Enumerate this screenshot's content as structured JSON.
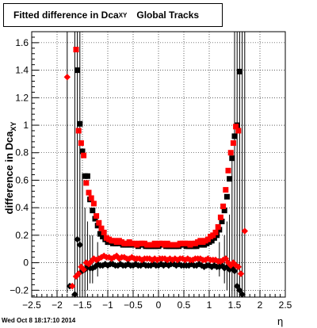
{
  "title": {
    "main": "Fitted difference in Dca",
    "sub": "XY",
    "rest": "Global Tracks"
  },
  "timestamp": "Wed Oct  8 18:17:10 2014",
  "chart_data": {
    "type": "scatter",
    "xlabel": "η",
    "ylabel": "difference in Dca",
    "ylabel_sub": "XY",
    "xlim": [
      -2.5,
      2.5
    ],
    "ylim": [
      -0.25,
      1.68
    ],
    "xticks": [
      -2.5,
      -2,
      -1.5,
      -1,
      -0.5,
      0,
      0.5,
      1,
      1.5,
      2,
      2.5
    ],
    "xtick_labels": [
      "−2.5",
      "−2",
      "−1.5",
      "−1",
      "−0.5",
      "0",
      "0.5",
      "1",
      "1.5",
      "2",
      "2.5"
    ],
    "yticks": [
      -0.2,
      0,
      0.2,
      0.4,
      0.6,
      0.8,
      1,
      1.2,
      1.4,
      1.6
    ],
    "ytick_labels": [
      "−0.2",
      "0",
      "0.2",
      "0.4",
      "0.6",
      "0.8",
      "1",
      "1.2",
      "1.4",
      "1.6"
    ],
    "grid": true,
    "series": [
      {
        "marker": "square",
        "color": "#000000",
        "x": [
          -1.6,
          -1.55,
          -1.5,
          -1.45,
          -1.4,
          -1.35,
          -1.3,
          -1.25,
          -1.2,
          -1.15,
          -1.1,
          -1.05,
          -1.0,
          -0.95,
          -0.9,
          -0.85,
          -0.8,
          -0.75,
          -0.7,
          -0.65,
          -0.6,
          -0.55,
          -0.5,
          -0.45,
          -0.4,
          -0.35,
          -0.3,
          -0.25,
          -0.2,
          -0.15,
          -0.1,
          -0.05,
          0.0,
          0.05,
          0.1,
          0.15,
          0.2,
          0.25,
          0.3,
          0.35,
          0.4,
          0.45,
          0.5,
          0.55,
          0.6,
          0.65,
          0.7,
          0.75,
          0.8,
          0.85,
          0.9,
          0.95,
          1.0,
          1.05,
          1.1,
          1.15,
          1.2,
          1.25,
          1.3,
          1.35,
          1.4,
          1.45,
          1.5,
          1.55,
          1.6
        ],
        "y": [
          1.4,
          1.01,
          0.81,
          0.63,
          0.63,
          0.46,
          0.38,
          0.32,
          0.27,
          0.21,
          0.19,
          0.17,
          0.15,
          0.15,
          0.14,
          0.14,
          0.14,
          0.15,
          0.13,
          0.13,
          0.13,
          0.13,
          0.13,
          0.13,
          0.12,
          0.13,
          0.13,
          0.12,
          0.12,
          0.12,
          0.12,
          0.12,
          0.12,
          0.13,
          0.13,
          0.12,
          0.12,
          0.12,
          0.12,
          0.12,
          0.12,
          0.13,
          0.13,
          0.12,
          0.12,
          0.12,
          0.12,
          0.12,
          0.14,
          0.13,
          0.13,
          0.14,
          0.15,
          0.16,
          0.18,
          0.2,
          0.24,
          0.3,
          0.38,
          0.48,
          0.61,
          0.76,
          0.92,
          1.0,
          1.39
        ]
      },
      {
        "marker": "square",
        "color": "#ff0000",
        "x": [
          -1.625,
          -1.575,
          -1.525,
          -1.475,
          -1.425,
          -1.375,
          -1.325,
          -1.275,
          -1.225,
          -1.175,
          -1.125,
          -1.075,
          -1.025,
          -0.975,
          -0.925,
          -0.875,
          -0.825,
          -0.775,
          -0.725,
          -0.675,
          -0.625,
          -0.575,
          -0.525,
          -0.475,
          -0.425,
          -0.375,
          -0.325,
          -0.275,
          -0.225,
          -0.175,
          -0.125,
          -0.075,
          -0.025,
          0.025,
          0.075,
          0.125,
          0.175,
          0.225,
          0.275,
          0.325,
          0.375,
          0.425,
          0.475,
          0.525,
          0.575,
          0.625,
          0.675,
          0.725,
          0.775,
          0.825,
          0.875,
          0.925,
          0.975,
          1.025,
          1.075,
          1.125,
          1.175,
          1.225,
          1.275,
          1.325,
          1.375,
          1.425,
          1.475,
          1.525,
          1.575
        ],
        "y": [
          1.55,
          0.96,
          0.87,
          0.78,
          0.58,
          0.51,
          0.47,
          0.43,
          0.34,
          0.29,
          0.25,
          0.22,
          0.18,
          0.17,
          0.16,
          0.16,
          0.15,
          0.16,
          0.15,
          0.14,
          0.14,
          0.15,
          0.14,
          0.14,
          0.13,
          0.14,
          0.14,
          0.14,
          0.13,
          0.13,
          0.13,
          0.14,
          0.13,
          0.14,
          0.14,
          0.13,
          0.14,
          0.13,
          0.13,
          0.13,
          0.13,
          0.14,
          0.14,
          0.14,
          0.14,
          0.13,
          0.14,
          0.14,
          0.15,
          0.16,
          0.15,
          0.16,
          0.17,
          0.19,
          0.2,
          0.22,
          0.26,
          0.33,
          0.41,
          0.53,
          0.67,
          0.8,
          0.87,
          0.99,
          0.96
        ]
      },
      {
        "marker": "diamond",
        "color": "#000000",
        "x": [
          -1.75,
          -1.65,
          -1.6,
          -1.55,
          -1.5,
          -1.45,
          -1.4,
          -1.35,
          -1.3,
          -1.25,
          -1.2,
          -1.15,
          -1.1,
          -1.05,
          -1.0,
          -0.95,
          -0.9,
          -0.85,
          -0.8,
          -0.75,
          -0.7,
          -0.65,
          -0.6,
          -0.55,
          -0.5,
          -0.45,
          -0.4,
          -0.35,
          -0.3,
          -0.25,
          -0.2,
          -0.15,
          -0.1,
          -0.05,
          0.0,
          0.05,
          0.1,
          0.15,
          0.2,
          0.25,
          0.3,
          0.35,
          0.4,
          0.45,
          0.5,
          0.55,
          0.6,
          0.65,
          0.7,
          0.75,
          0.8,
          0.85,
          0.9,
          0.95,
          1.0,
          1.05,
          1.1,
          1.15,
          1.2,
          1.25,
          1.3,
          1.35,
          1.4,
          1.45,
          1.5,
          1.55,
          1.6,
          1.65
        ],
        "y": [
          -0.17,
          -0.23,
          0.17,
          0.13,
          -0.06,
          -0.05,
          -0.02,
          -0.04,
          -0.04,
          -0.03,
          -0.01,
          -0.02,
          -0.02,
          -0.01,
          -0.02,
          -0.01,
          -0.01,
          -0.02,
          -0.02,
          -0.01,
          -0.02,
          -0.02,
          -0.01,
          -0.02,
          -0.02,
          -0.01,
          -0.02,
          -0.02,
          -0.01,
          -0.02,
          -0.02,
          -0.02,
          -0.01,
          -0.02,
          -0.02,
          -0.01,
          -0.02,
          -0.01,
          -0.02,
          -0.01,
          -0.01,
          -0.02,
          -0.01,
          -0.02,
          -0.02,
          -0.02,
          -0.02,
          -0.01,
          -0.02,
          -0.02,
          -0.01,
          -0.02,
          -0.03,
          -0.02,
          -0.02,
          -0.03,
          -0.02,
          -0.03,
          -0.03,
          -0.02,
          -0.04,
          -0.03,
          -0.05,
          -0.04,
          -0.06,
          -0.17,
          -0.2,
          -0.23
        ]
      },
      {
        "marker": "diamond",
        "color": "#ff0000",
        "x": [
          -1.8,
          -1.7,
          -1.625,
          -1.575,
          -1.525,
          -1.475,
          -1.425,
          -1.375,
          -1.325,
          -1.275,
          -1.225,
          -1.175,
          -1.125,
          -1.075,
          -1.025,
          -0.975,
          -0.925,
          -0.875,
          -0.825,
          -0.775,
          -0.725,
          -0.675,
          -0.625,
          -0.575,
          -0.525,
          -0.475,
          -0.425,
          -0.375,
          -0.325,
          -0.275,
          -0.225,
          -0.175,
          -0.125,
          -0.075,
          -0.025,
          0.025,
          0.075,
          0.125,
          0.175,
          0.225,
          0.275,
          0.325,
          0.375,
          0.425,
          0.475,
          0.525,
          0.575,
          0.625,
          0.675,
          0.725,
          0.775,
          0.825,
          0.875,
          0.925,
          0.975,
          1.025,
          1.075,
          1.125,
          1.175,
          1.225,
          1.275,
          1.325,
          1.375,
          1.425,
          1.475,
          1.525,
          1.575,
          1.625,
          1.7
        ],
        "y": [
          1.35,
          -0.17,
          -0.1,
          -0.08,
          -0.03,
          -0.05,
          0.0,
          -0.01,
          0.01,
          0.03,
          0.02,
          0.03,
          0.04,
          0.05,
          0.04,
          0.04,
          0.03,
          0.04,
          0.05,
          0.03,
          0.04,
          0.04,
          0.03,
          0.03,
          0.04,
          0.03,
          0.03,
          0.03,
          0.02,
          0.03,
          0.03,
          0.03,
          0.02,
          0.03,
          0.02,
          0.03,
          0.03,
          0.03,
          0.02,
          0.03,
          0.02,
          0.03,
          0.02,
          0.03,
          0.03,
          0.02,
          0.03,
          0.02,
          0.02,
          0.03,
          0.03,
          0.03,
          0.02,
          0.02,
          0.03,
          0.02,
          0.02,
          0.02,
          0.01,
          0.01,
          0.02,
          0.03,
          0.0,
          -0.02,
          0.0,
          -0.02,
          -0.03,
          -0.08,
          0.23
        ]
      }
    ],
    "error_bars": [
      {
        "x": -1.8,
        "low": -0.22,
        "high": 1.68
      },
      {
        "x": -1.65,
        "low": -0.25,
        "high": 1.68
      },
      {
        "x": -1.6,
        "low": -0.25,
        "high": 1.68
      },
      {
        "x": -1.55,
        "low": -0.25,
        "high": 1.68
      },
      {
        "x": -1.5,
        "low": -0.25,
        "high": 0.65
      },
      {
        "x": -1.45,
        "low": -0.25,
        "high": 0.4
      },
      {
        "x": -1.4,
        "low": -0.2,
        "high": 0.3
      },
      {
        "x": -1.35,
        "low": -0.15,
        "high": 0.2
      },
      {
        "x": -1.3,
        "low": -0.15,
        "high": 0.2
      },
      {
        "x": -1.2,
        "low": -0.1,
        "high": 0.15
      },
      {
        "x": 1.2,
        "low": -0.1,
        "high": 0.15
      },
      {
        "x": 1.3,
        "low": -0.15,
        "high": 0.2
      },
      {
        "x": 1.35,
        "low": -0.2,
        "high": 0.3
      },
      {
        "x": 1.4,
        "low": -0.25,
        "high": 0.35
      },
      {
        "x": 1.45,
        "low": -0.25,
        "high": 0.75
      },
      {
        "x": 1.5,
        "low": -0.25,
        "high": 1.68
      },
      {
        "x": 1.55,
        "low": -0.25,
        "high": 1.68
      },
      {
        "x": 1.6,
        "low": -0.25,
        "high": 1.68
      },
      {
        "x": 1.65,
        "low": -0.25,
        "high": 1.68
      },
      {
        "x": 1.7,
        "low": -0.25,
        "high": 1.68
      }
    ]
  }
}
